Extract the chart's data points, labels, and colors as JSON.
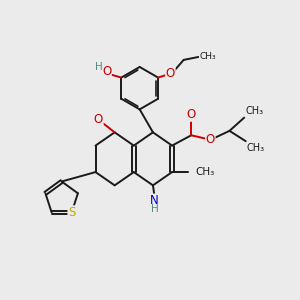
{
  "bg_color": "#ebebeb",
  "bond_color": "#1a1a1a",
  "bond_width": 1.4,
  "atom_colors": {
    "O": "#cc0000",
    "N": "#0000cc",
    "S": "#bbaa00",
    "H": "#558888",
    "C": "#1a1a1a"
  },
  "font_size": 8.5,
  "xlim": [
    0,
    10
  ],
  "ylim": [
    0,
    10
  ]
}
